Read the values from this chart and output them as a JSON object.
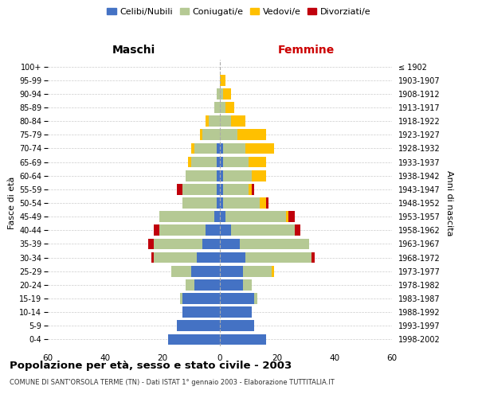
{
  "age_groups": [
    "0-4",
    "5-9",
    "10-14",
    "15-19",
    "20-24",
    "25-29",
    "30-34",
    "35-39",
    "40-44",
    "45-49",
    "50-54",
    "55-59",
    "60-64",
    "65-69",
    "70-74",
    "75-79",
    "80-84",
    "85-89",
    "90-94",
    "95-99",
    "100+"
  ],
  "birth_years": [
    "1998-2002",
    "1993-1997",
    "1988-1992",
    "1983-1987",
    "1978-1982",
    "1973-1977",
    "1968-1972",
    "1963-1967",
    "1958-1962",
    "1953-1957",
    "1948-1952",
    "1943-1947",
    "1938-1942",
    "1933-1937",
    "1928-1932",
    "1923-1927",
    "1918-1922",
    "1913-1917",
    "1908-1912",
    "1903-1907",
    "≤ 1902"
  ],
  "males": {
    "celibe": [
      18,
      15,
      13,
      13,
      9,
      10,
      8,
      6,
      5,
      2,
      1,
      1,
      1,
      1,
      1,
      0,
      0,
      0,
      0,
      0,
      0
    ],
    "coniugato": [
      0,
      0,
      0,
      1,
      3,
      7,
      15,
      17,
      16,
      19,
      12,
      12,
      11,
      9,
      8,
      6,
      4,
      2,
      1,
      0,
      0
    ],
    "vedovo": [
      0,
      0,
      0,
      0,
      0,
      0,
      0,
      0,
      0,
      0,
      0,
      0,
      0,
      1,
      1,
      1,
      1,
      0,
      0,
      0,
      0
    ],
    "divorziato": [
      0,
      0,
      0,
      0,
      0,
      0,
      1,
      2,
      2,
      0,
      0,
      2,
      0,
      0,
      0,
      0,
      0,
      0,
      0,
      0,
      0
    ]
  },
  "females": {
    "nubile": [
      16,
      12,
      11,
      12,
      8,
      8,
      9,
      7,
      4,
      2,
      1,
      1,
      1,
      1,
      1,
      0,
      0,
      0,
      0,
      0,
      0
    ],
    "coniugata": [
      0,
      0,
      0,
      1,
      3,
      10,
      23,
      24,
      22,
      21,
      13,
      9,
      10,
      9,
      8,
      6,
      4,
      2,
      1,
      0,
      0
    ],
    "vedova": [
      0,
      0,
      0,
      0,
      0,
      1,
      0,
      0,
      0,
      1,
      2,
      1,
      5,
      6,
      10,
      10,
      5,
      3,
      3,
      2,
      0
    ],
    "divorziata": [
      0,
      0,
      0,
      0,
      0,
      0,
      1,
      0,
      2,
      2,
      1,
      1,
      0,
      0,
      0,
      0,
      0,
      0,
      0,
      0,
      0
    ]
  },
  "colors": {
    "celibe_nubile": "#4472c4",
    "coniugato_coniugata": "#b5c994",
    "vedovo_vedova": "#ffc000",
    "divorziato_divorziata": "#c0000c"
  },
  "title": "Popolazione per età, sesso e stato civile - 2003",
  "subtitle": "COMUNE DI SANT'ORSOLA TERME (TN) - Dati ISTAT 1° gennaio 2003 - Elaborazione TUTTITALIA.IT",
  "xlabel_left": "Maschi",
  "xlabel_right": "Femmine",
  "ylabel_left": "Fasce di età",
  "ylabel_right": "Anni di nascita",
  "xlim": 60,
  "legend_labels": [
    "Celibi/Nubili",
    "Coniugati/e",
    "Vedovi/e",
    "Divorziati/e"
  ],
  "background_color": "#ffffff",
  "grid_color": "#cccccc"
}
